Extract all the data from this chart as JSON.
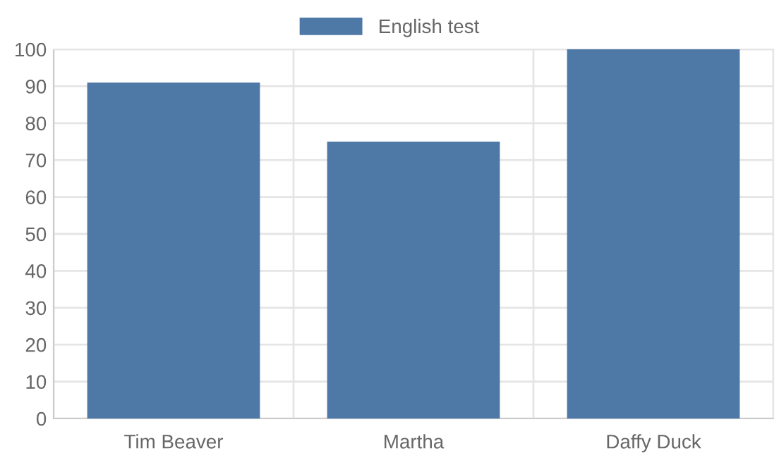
{
  "chart_data": {
    "type": "bar",
    "categories": [
      "Tim Beaver",
      "Martha",
      "Daffy Duck"
    ],
    "series": [
      {
        "name": "English test",
        "color": "#4e79a7",
        "values": [
          91,
          75,
          100
        ]
      }
    ],
    "ylim": [
      0,
      100
    ],
    "yticks": [
      0,
      10,
      20,
      30,
      40,
      50,
      60,
      70,
      80,
      90,
      100
    ],
    "grid": true,
    "legend": "top"
  }
}
